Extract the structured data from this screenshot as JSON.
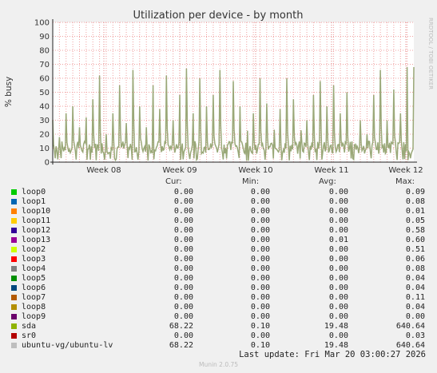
{
  "chart_data": {
    "type": "area",
    "title": "Utilization per device - by month",
    "ylabel": "% busy",
    "ylim": [
      0,
      100
    ],
    "yticks": [
      0,
      10,
      20,
      30,
      40,
      50,
      60,
      70,
      80,
      90,
      100
    ],
    "xticks": [
      "Week 08",
      "Week 09",
      "Week 10",
      "Week 11",
      "Week 12"
    ],
    "series_plotted": "sda",
    "grid": true,
    "daily_peaks": [
      30,
      18,
      35,
      40,
      25,
      32,
      45,
      62,
      20,
      35,
      55,
      28,
      66,
      40,
      25,
      55,
      38,
      62,
      30,
      48,
      67,
      35,
      60,
      40,
      48,
      66,
      30,
      58,
      40,
      62,
      35,
      60,
      42,
      55,
      38,
      60,
      45,
      62,
      30,
      48,
      58,
      40,
      55,
      35,
      50,
      32,
      30,
      20,
      48,
      66,
      30,
      52,
      35,
      68
    ]
  },
  "side_text": "RRDTOOL / TOBI OETIKER",
  "legend": {
    "headers": {
      "cur": "Cur:",
      "min": "Min:",
      "avg": "Avg:",
      "max": "Max:"
    },
    "rows": [
      {
        "name": "loop0",
        "color": "#00cc00",
        "cur": "0.00",
        "min": "0.00",
        "avg": "0.00",
        "max": "0.09"
      },
      {
        "name": "loop1",
        "color": "#0066b3",
        "cur": "0.00",
        "min": "0.00",
        "avg": "0.00",
        "max": "0.08"
      },
      {
        "name": "loop10",
        "color": "#ff8000",
        "cur": "0.00",
        "min": "0.00",
        "avg": "0.00",
        "max": "0.01"
      },
      {
        "name": "loop11",
        "color": "#ffcc00",
        "cur": "0.00",
        "min": "0.00",
        "avg": "0.00",
        "max": "0.05"
      },
      {
        "name": "loop12",
        "color": "#330099",
        "cur": "0.00",
        "min": "0.00",
        "avg": "0.00",
        "max": "0.58"
      },
      {
        "name": "loop13",
        "color": "#990099",
        "cur": "0.00",
        "min": "0.00",
        "avg": "0.01",
        "max": "0.60"
      },
      {
        "name": "loop2",
        "color": "#ccff00",
        "cur": "0.00",
        "min": "0.00",
        "avg": "0.00",
        "max": "0.51"
      },
      {
        "name": "loop3",
        "color": "#ff0000",
        "cur": "0.00",
        "min": "0.00",
        "avg": "0.00",
        "max": "0.06"
      },
      {
        "name": "loop4",
        "color": "#808080",
        "cur": "0.00",
        "min": "0.00",
        "avg": "0.00",
        "max": "0.08"
      },
      {
        "name": "loop5",
        "color": "#008f00",
        "cur": "0.00",
        "min": "0.00",
        "avg": "0.00",
        "max": "0.04"
      },
      {
        "name": "loop6",
        "color": "#00487d",
        "cur": "0.00",
        "min": "0.00",
        "avg": "0.00",
        "max": "0.04"
      },
      {
        "name": "loop7",
        "color": "#b35a00",
        "cur": "0.00",
        "min": "0.00",
        "avg": "0.00",
        "max": "0.11"
      },
      {
        "name": "loop8",
        "color": "#b38f00",
        "cur": "0.00",
        "min": "0.00",
        "avg": "0.00",
        "max": "0.04"
      },
      {
        "name": "loop9",
        "color": "#6b006b",
        "cur": "0.00",
        "min": "0.00",
        "avg": "0.00",
        "max": "0.00"
      },
      {
        "name": "sda",
        "color": "#8fb300",
        "cur": "68.22",
        "min": "0.10",
        "avg": "19.48",
        "max": "640.64"
      },
      {
        "name": "sr0",
        "color": "#b30000",
        "cur": "0.00",
        "min": "0.00",
        "avg": "0.00",
        "max": "0.03"
      },
      {
        "name": "ubuntu-vg/ubuntu-lv",
        "color": "#bebebe",
        "cur": "68.22",
        "min": "0.10",
        "avg": "19.48",
        "max": "640.64"
      }
    ]
  },
  "last_update": "Last update: Fri Mar 20 03:00:27 2026",
  "munin_version": "Munin 2.0.75"
}
